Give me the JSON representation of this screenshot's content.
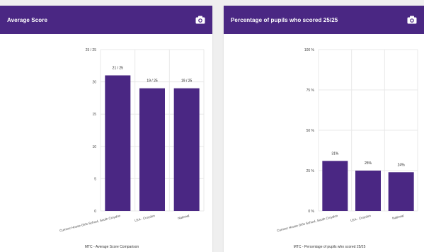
{
  "colors": {
    "accent": "#4a2783",
    "bar": "#4a2783",
    "grid": "#e8e8e8",
    "text": "#444444"
  },
  "panels": [
    {
      "title": "Average Score",
      "icon": "camera-icon",
      "chart_data": {
        "type": "bar",
        "title": "",
        "xlabel": "MTC - Average Score Comparison",
        "ylabel": "",
        "categories": [
          "Cumnor House Girls School, South Croydon",
          "LEA - Croydon",
          "National"
        ],
        "values": [
          21,
          19,
          19
        ],
        "data_labels": [
          "21 / 25",
          "19 / 25",
          "19 / 25"
        ],
        "yticks": [
          0,
          5,
          10,
          15,
          20,
          25
        ],
        "ytick_labels": [
          "0",
          "5",
          "10",
          "15",
          "20",
          "25 / 25"
        ],
        "ylim": [
          0,
          25
        ],
        "grid": true
      }
    },
    {
      "title": "Percentage of pupils who scored 25/25",
      "icon": "camera-icon",
      "chart_data": {
        "type": "bar",
        "title": "",
        "xlabel": "MTC - Percentage of pupils who scored 25/25",
        "ylabel": "",
        "categories": [
          "Cumnor House Girls School, South Croydon",
          "LEA - Croydon",
          "National"
        ],
        "values": [
          31,
          25,
          24
        ],
        "data_labels": [
          "31%",
          "25%",
          "24%"
        ],
        "yticks": [
          0,
          25,
          50,
          75,
          100
        ],
        "ytick_labels": [
          "0 %",
          "25 %",
          "50 %",
          "75 %",
          "100 %"
        ],
        "ylim": [
          0,
          100
        ],
        "grid": true
      }
    }
  ]
}
